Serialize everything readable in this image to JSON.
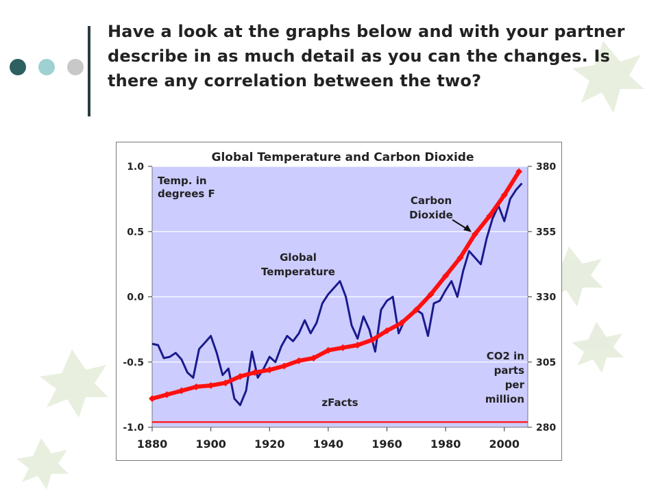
{
  "instruction": "Have a look at the graphs below and with your partner describe in as much detail as you can the changes. Is there any correlation between the two?",
  "colors": {
    "dot1": "#2e5f61",
    "dot2": "#9fd0d2",
    "dot3": "#c8c8c8",
    "plot_bg": "#ccccff",
    "temp_line": "#1a1a8c",
    "co2_line": "#ff1010",
    "baseline": "#ff2020"
  },
  "icons": {
    "bullet_dots": "three-circles-icon",
    "decoration": "leaf-icon"
  },
  "chart_data": {
    "type": "line",
    "title": "Global Temperature and Carbon Dioxide",
    "x_ticks": [
      "1880",
      "1900",
      "1920",
      "1940",
      "1960",
      "1980",
      "2000"
    ],
    "xlim": [
      1880,
      2008
    ],
    "left_axis": {
      "label_line1": "Temp. in",
      "label_line2": "degrees F",
      "ticks": [
        "1.0",
        "0.5",
        "0.0",
        "-0.5",
        "-1.0"
      ],
      "ylim": [
        -1.0,
        1.0
      ]
    },
    "right_axis": {
      "label_line1": "CO2 in",
      "label_line2": "parts",
      "label_line3": "per",
      "label_line4": "million",
      "ticks": [
        "380",
        "355",
        "330",
        "305",
        "280"
      ],
      "ylim": [
        280,
        380
      ]
    },
    "annotations": {
      "temp_line1": "Global",
      "temp_line2": "Temperature",
      "co2_line1": "Carbon",
      "co2_line2": "Dioxide",
      "source": "zFacts"
    },
    "grid": true,
    "series": [
      {
        "axis": "left",
        "x": [
          1880,
          1882,
          1884,
          1886,
          1888,
          1890,
          1892,
          1894,
          1896,
          1898,
          1900,
          1902,
          1904,
          1906,
          1908,
          1910,
          1912,
          1914,
          1916,
          1918,
          1920,
          1922,
          1924,
          1926,
          1928,
          1930,
          1932,
          1934,
          1936,
          1938,
          1940,
          1942,
          1944,
          1946,
          1948,
          1950,
          1952,
          1954,
          1956,
          1958,
          1960,
          1962,
          1964,
          1966,
          1968,
          1970,
          1972,
          1974,
          1976,
          1978,
          1980,
          1982,
          1984,
          1986,
          1988,
          1990,
          1992,
          1994,
          1996,
          1998,
          2000,
          2002,
          2004,
          2006
        ],
        "values": [
          -0.36,
          -0.37,
          -0.47,
          -0.46,
          -0.43,
          -0.48,
          -0.58,
          -0.62,
          -0.4,
          -0.35,
          -0.3,
          -0.43,
          -0.6,
          -0.55,
          -0.78,
          -0.83,
          -0.72,
          -0.42,
          -0.62,
          -0.55,
          -0.46,
          -0.5,
          -0.38,
          -0.3,
          -0.34,
          -0.28,
          -0.18,
          -0.28,
          -0.2,
          -0.05,
          0.02,
          0.07,
          0.12,
          0.0,
          -0.22,
          -0.32,
          -0.15,
          -0.25,
          -0.42,
          -0.1,
          -0.03,
          0.0,
          -0.28,
          -0.18,
          -0.15,
          -0.1,
          -0.13,
          -0.3,
          -0.05,
          -0.03,
          0.05,
          0.12,
          0.0,
          0.2,
          0.35,
          0.3,
          0.25,
          0.45,
          0.6,
          0.7,
          0.58,
          0.75,
          0.82,
          0.87
        ]
      },
      {
        "axis": "right",
        "x": [
          1880,
          1885,
          1890,
          1895,
          1900,
          1905,
          1910,
          1915,
          1920,
          1925,
          1930,
          1935,
          1940,
          1945,
          1950,
          1955,
          1960,
          1965,
          1970,
          1975,
          1980,
          1985,
          1990,
          1995,
          2000,
          2005
        ],
        "values": [
          291,
          292.5,
          294,
          295.5,
          296,
          297,
          299.5,
          301,
          302,
          303.5,
          305.5,
          306.5,
          309.5,
          310.5,
          311.5,
          313.5,
          317,
          320,
          325,
          331,
          338,
          345,
          354,
          361,
          369,
          378
        ]
      }
    ]
  }
}
